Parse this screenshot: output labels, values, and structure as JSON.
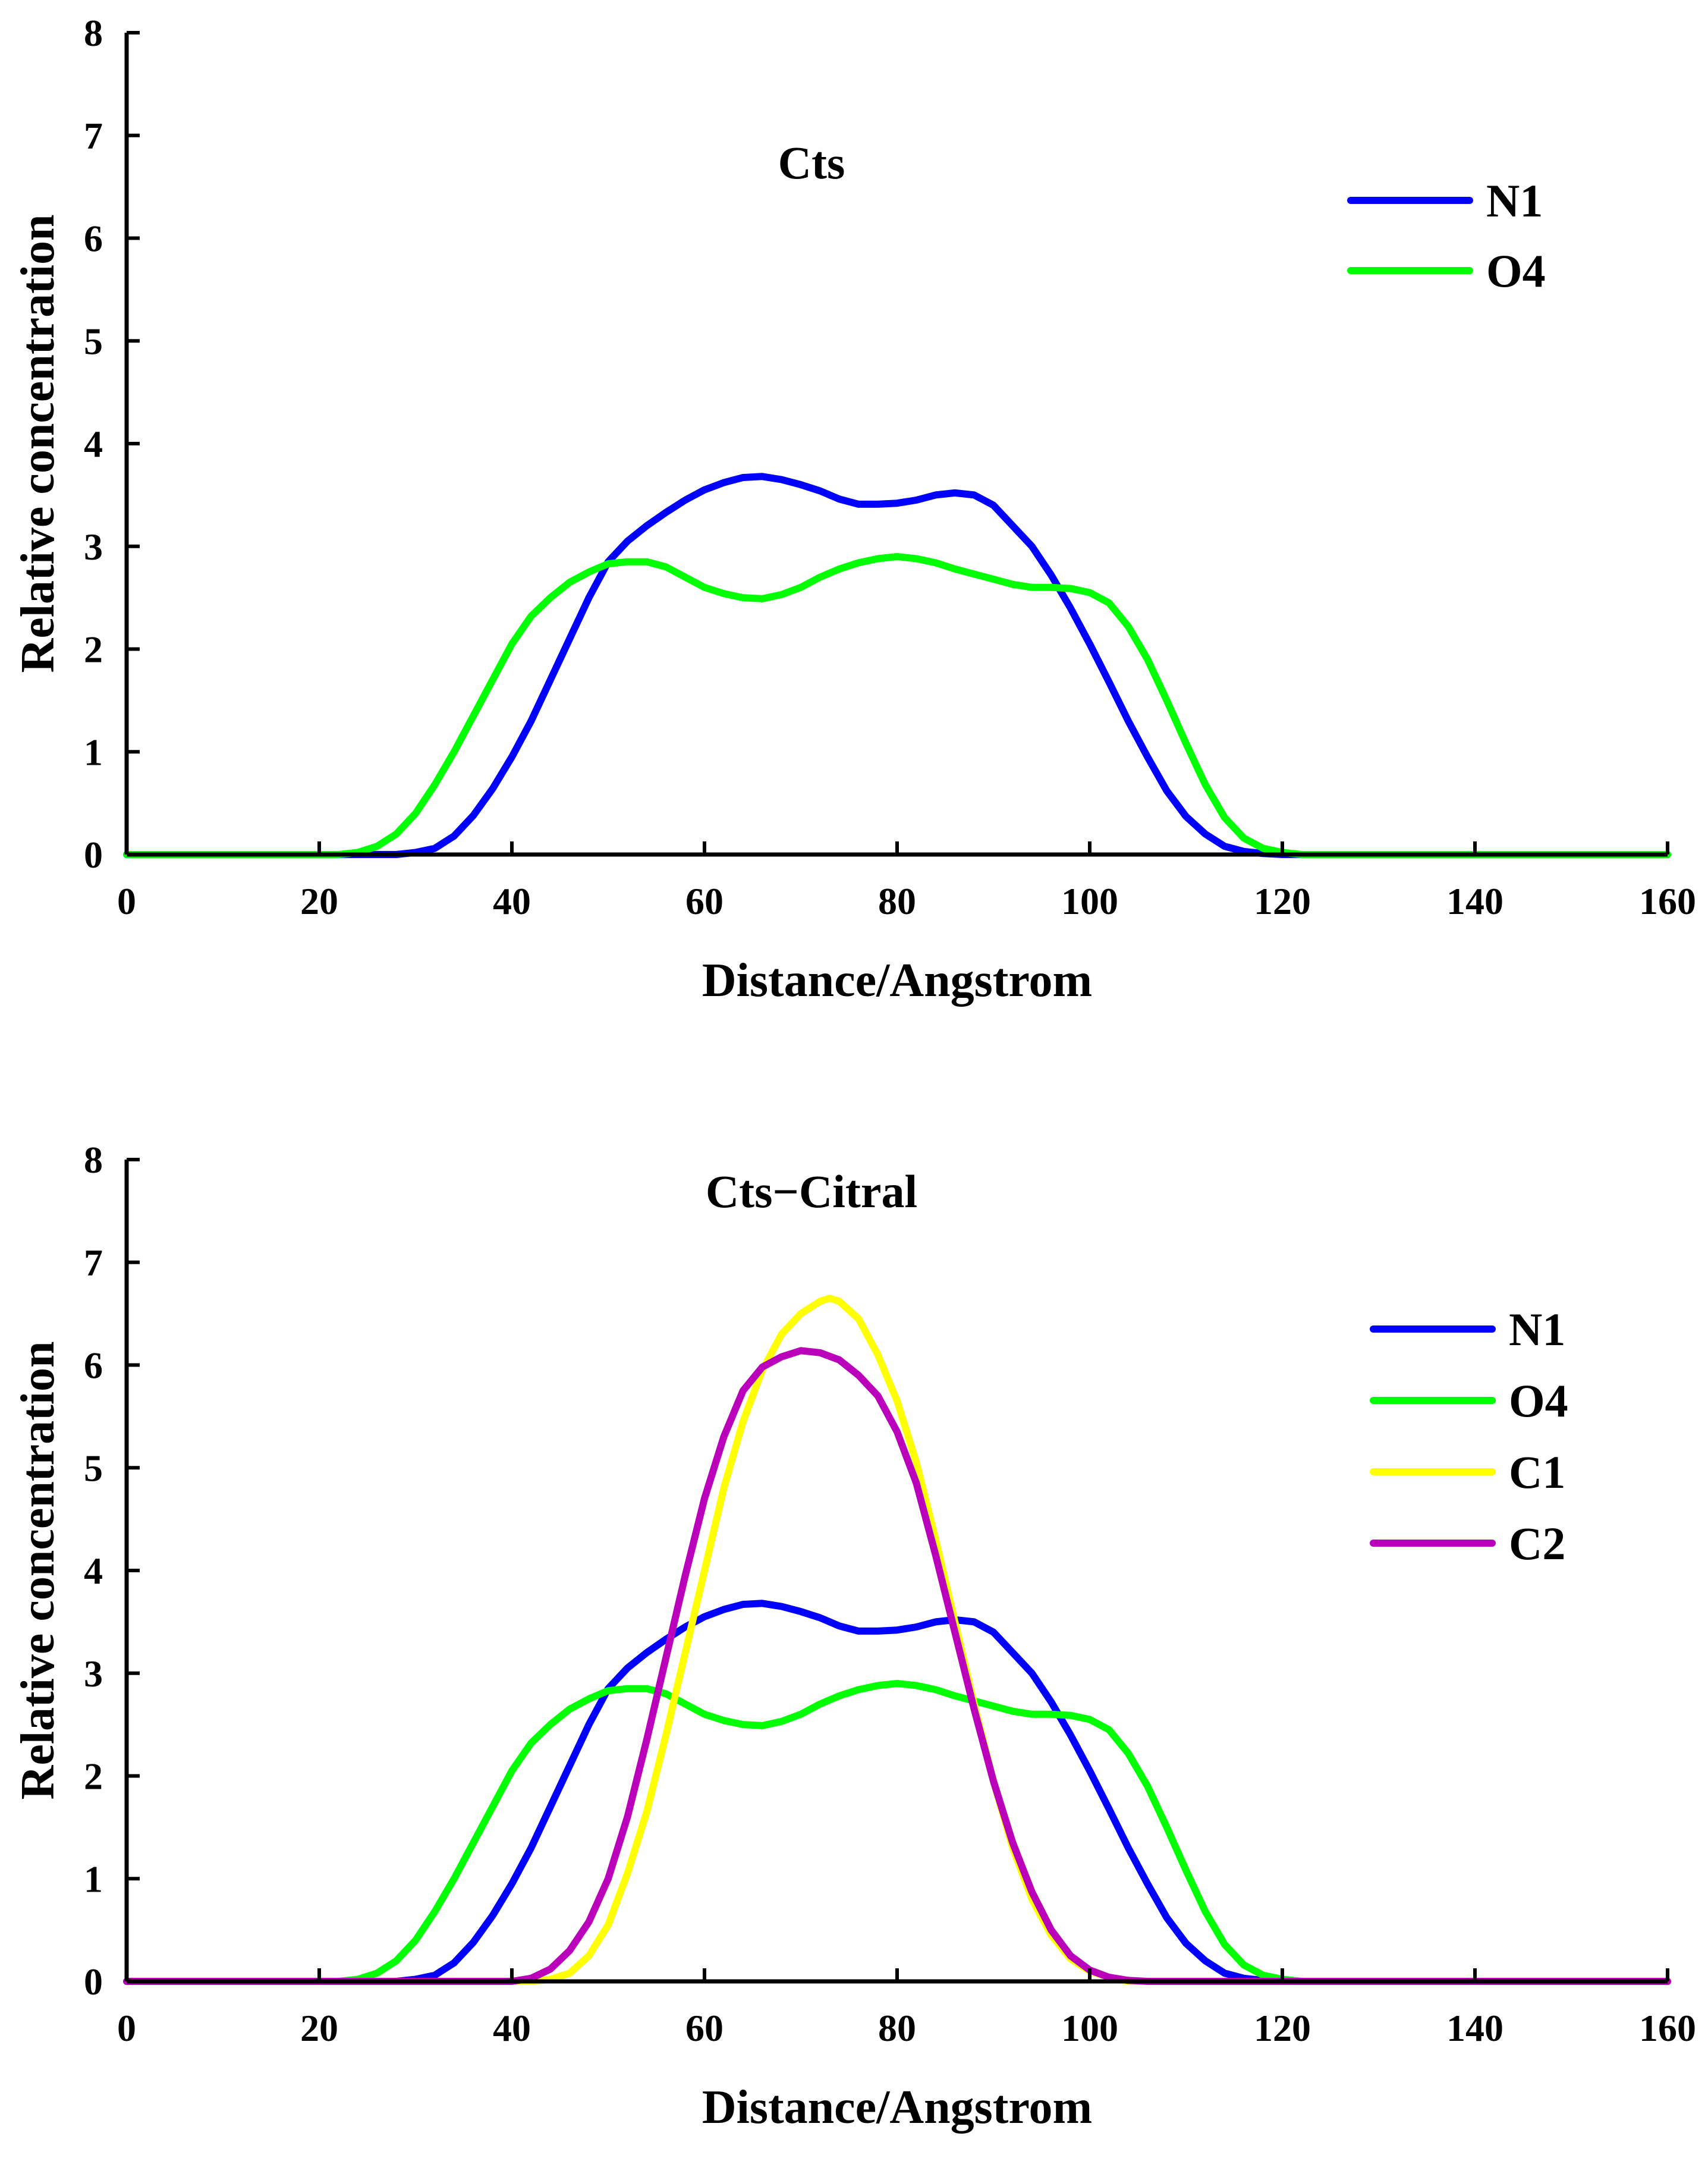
{
  "chart_data": [
    {
      "type": "line",
      "title": "Cts",
      "xlabel": "Distance/Angstrom",
      "ylabel": "Relative concentration",
      "xlim": [
        0,
        160
      ],
      "ylim": [
        0,
        8
      ],
      "xticks": [
        "0",
        "20",
        "40",
        "60",
        "80",
        "100",
        "120",
        "140",
        "160"
      ],
      "yticks": [
        "0",
        "1",
        "2",
        "3",
        "4",
        "5",
        "6",
        "7",
        "8"
      ],
      "legend_position": "top-right",
      "series": [
        {
          "name": "N1",
          "color": "#0000ff",
          "points": [
            [
              0,
              0
            ],
            [
              28,
              0
            ],
            [
              30,
              0.02
            ],
            [
              32,
              0.06
            ],
            [
              34,
              0.18
            ],
            [
              36,
              0.38
            ],
            [
              38,
              0.64
            ],
            [
              40,
              0.95
            ],
            [
              42,
              1.3
            ],
            [
              44,
              1.7
            ],
            [
              46,
              2.1
            ],
            [
              48,
              2.5
            ],
            [
              50,
              2.85
            ],
            [
              52,
              3.05
            ],
            [
              54,
              3.2
            ],
            [
              56,
              3.33
            ],
            [
              58,
              3.45
            ],
            [
              60,
              3.55
            ],
            [
              62,
              3.62
            ],
            [
              64,
              3.67
            ],
            [
              66,
              3.68
            ],
            [
              68,
              3.65
            ],
            [
              70,
              3.6
            ],
            [
              72,
              3.54
            ],
            [
              74,
              3.46
            ],
            [
              76,
              3.41
            ],
            [
              78,
              3.41
            ],
            [
              80,
              3.42
            ],
            [
              82,
              3.45
            ],
            [
              84,
              3.5
            ],
            [
              86,
              3.52
            ],
            [
              88,
              3.5
            ],
            [
              90,
              3.4
            ],
            [
              92,
              3.2
            ],
            [
              94,
              3.0
            ],
            [
              96,
              2.72
            ],
            [
              98,
              2.4
            ],
            [
              100,
              2.05
            ],
            [
              102,
              1.68
            ],
            [
              104,
              1.3
            ],
            [
              106,
              0.95
            ],
            [
              108,
              0.62
            ],
            [
              110,
              0.37
            ],
            [
              112,
              0.2
            ],
            [
              114,
              0.08
            ],
            [
              116,
              0.03
            ],
            [
              118,
              0.01
            ],
            [
              120,
              0
            ],
            [
              160,
              0
            ]
          ]
        },
        {
          "name": "O4",
          "color": "#00ff00",
          "points": [
            [
              0,
              0
            ],
            [
              22,
              0
            ],
            [
              24,
              0.02
            ],
            [
              26,
              0.08
            ],
            [
              28,
              0.2
            ],
            [
              30,
              0.4
            ],
            [
              32,
              0.68
            ],
            [
              34,
              1.0
            ],
            [
              36,
              1.35
            ],
            [
              38,
              1.7
            ],
            [
              40,
              2.05
            ],
            [
              42,
              2.32
            ],
            [
              44,
              2.5
            ],
            [
              46,
              2.65
            ],
            [
              48,
              2.75
            ],
            [
              50,
              2.83
            ],
            [
              52,
              2.85
            ],
            [
              54,
              2.85
            ],
            [
              56,
              2.8
            ],
            [
              58,
              2.7
            ],
            [
              60,
              2.6
            ],
            [
              62,
              2.54
            ],
            [
              64,
              2.5
            ],
            [
              66,
              2.49
            ],
            [
              68,
              2.53
            ],
            [
              70,
              2.6
            ],
            [
              72,
              2.7
            ],
            [
              74,
              2.78
            ],
            [
              76,
              2.84
            ],
            [
              78,
              2.88
            ],
            [
              80,
              2.9
            ],
            [
              82,
              2.88
            ],
            [
              84,
              2.84
            ],
            [
              86,
              2.78
            ],
            [
              88,
              2.73
            ],
            [
              90,
              2.68
            ],
            [
              92,
              2.63
            ],
            [
              94,
              2.6
            ],
            [
              96,
              2.6
            ],
            [
              98,
              2.59
            ],
            [
              100,
              2.55
            ],
            [
              102,
              2.45
            ],
            [
              104,
              2.22
            ],
            [
              106,
              1.9
            ],
            [
              108,
              1.5
            ],
            [
              110,
              1.08
            ],
            [
              112,
              0.68
            ],
            [
              114,
              0.36
            ],
            [
              116,
              0.16
            ],
            [
              118,
              0.06
            ],
            [
              120,
              0.02
            ],
            [
              122,
              0
            ],
            [
              160,
              0
            ]
          ]
        }
      ]
    },
    {
      "type": "line",
      "title": "Cts−Citral",
      "xlabel": "Distance/Angstrom",
      "ylabel": "Relative concentration",
      "xlim": [
        0,
        160
      ],
      "ylim": [
        0,
        8
      ],
      "xticks": [
        "0",
        "20",
        "40",
        "60",
        "80",
        "100",
        "120",
        "140",
        "160"
      ],
      "yticks": [
        "0",
        "1",
        "2",
        "3",
        "4",
        "5",
        "6",
        "7",
        "8"
      ],
      "legend_position": "top-right",
      "series": [
        {
          "name": "N1",
          "color": "#0000ff",
          "points": [
            [
              0,
              0
            ],
            [
              28,
              0
            ],
            [
              30,
              0.02
            ],
            [
              32,
              0.06
            ],
            [
              34,
              0.18
            ],
            [
              36,
              0.38
            ],
            [
              38,
              0.64
            ],
            [
              40,
              0.95
            ],
            [
              42,
              1.3
            ],
            [
              44,
              1.7
            ],
            [
              46,
              2.1
            ],
            [
              48,
              2.5
            ],
            [
              50,
              2.85
            ],
            [
              52,
              3.05
            ],
            [
              54,
              3.2
            ],
            [
              56,
              3.33
            ],
            [
              58,
              3.45
            ],
            [
              60,
              3.55
            ],
            [
              62,
              3.62
            ],
            [
              64,
              3.67
            ],
            [
              66,
              3.68
            ],
            [
              68,
              3.65
            ],
            [
              70,
              3.6
            ],
            [
              72,
              3.54
            ],
            [
              74,
              3.46
            ],
            [
              76,
              3.41
            ],
            [
              78,
              3.41
            ],
            [
              80,
              3.42
            ],
            [
              82,
              3.45
            ],
            [
              84,
              3.5
            ],
            [
              86,
              3.52
            ],
            [
              88,
              3.5
            ],
            [
              90,
              3.4
            ],
            [
              92,
              3.2
            ],
            [
              94,
              3.0
            ],
            [
              96,
              2.72
            ],
            [
              98,
              2.4
            ],
            [
              100,
              2.05
            ],
            [
              102,
              1.68
            ],
            [
              104,
              1.3
            ],
            [
              106,
              0.95
            ],
            [
              108,
              0.62
            ],
            [
              110,
              0.37
            ],
            [
              112,
              0.2
            ],
            [
              114,
              0.08
            ],
            [
              116,
              0.03
            ],
            [
              118,
              0.01
            ],
            [
              120,
              0
            ],
            [
              160,
              0
            ]
          ]
        },
        {
          "name": "O4",
          "color": "#00ff00",
          "points": [
            [
              0,
              0
            ],
            [
              22,
              0
            ],
            [
              24,
              0.02
            ],
            [
              26,
              0.08
            ],
            [
              28,
              0.2
            ],
            [
              30,
              0.4
            ],
            [
              32,
              0.68
            ],
            [
              34,
              1.0
            ],
            [
              36,
              1.35
            ],
            [
              38,
              1.7
            ],
            [
              40,
              2.05
            ],
            [
              42,
              2.32
            ],
            [
              44,
              2.5
            ],
            [
              46,
              2.65
            ],
            [
              48,
              2.75
            ],
            [
              50,
              2.83
            ],
            [
              52,
              2.85
            ],
            [
              54,
              2.85
            ],
            [
              56,
              2.8
            ],
            [
              58,
              2.7
            ],
            [
              60,
              2.6
            ],
            [
              62,
              2.54
            ],
            [
              64,
              2.5
            ],
            [
              66,
              2.49
            ],
            [
              68,
              2.53
            ],
            [
              70,
              2.6
            ],
            [
              72,
              2.7
            ],
            [
              74,
              2.78
            ],
            [
              76,
              2.84
            ],
            [
              78,
              2.88
            ],
            [
              80,
              2.9
            ],
            [
              82,
              2.88
            ],
            [
              84,
              2.84
            ],
            [
              86,
              2.78
            ],
            [
              88,
              2.73
            ],
            [
              90,
              2.68
            ],
            [
              92,
              2.63
            ],
            [
              94,
              2.6
            ],
            [
              96,
              2.6
            ],
            [
              98,
              2.59
            ],
            [
              100,
              2.55
            ],
            [
              102,
              2.45
            ],
            [
              104,
              2.22
            ],
            [
              106,
              1.9
            ],
            [
              108,
              1.5
            ],
            [
              110,
              1.08
            ],
            [
              112,
              0.68
            ],
            [
              114,
              0.36
            ],
            [
              116,
              0.16
            ],
            [
              118,
              0.06
            ],
            [
              120,
              0.02
            ],
            [
              122,
              0
            ],
            [
              160,
              0
            ]
          ]
        },
        {
          "name": "C1",
          "color": "#ffff00",
          "points": [
            [
              0,
              0
            ],
            [
              42,
              0
            ],
            [
              44,
              0.02
            ],
            [
              46,
              0.08
            ],
            [
              48,
              0.25
            ],
            [
              50,
              0.55
            ],
            [
              52,
              1.05
            ],
            [
              54,
              1.65
            ],
            [
              56,
              2.4
            ],
            [
              58,
              3.2
            ],
            [
              60,
              4.0
            ],
            [
              62,
              4.8
            ],
            [
              64,
              5.45
            ],
            [
              66,
              5.95
            ],
            [
              68,
              6.3
            ],
            [
              70,
              6.5
            ],
            [
              72,
              6.62
            ],
            [
              73,
              6.65
            ],
            [
              74,
              6.62
            ],
            [
              76,
              6.45
            ],
            [
              78,
              6.1
            ],
            [
              80,
              5.65
            ],
            [
              82,
              5.05
            ],
            [
              84,
              4.3
            ],
            [
              86,
              3.5
            ],
            [
              88,
              2.7
            ],
            [
              90,
              1.95
            ],
            [
              92,
              1.3
            ],
            [
              94,
              0.8
            ],
            [
              96,
              0.45
            ],
            [
              98,
              0.22
            ],
            [
              100,
              0.1
            ],
            [
              102,
              0.04
            ],
            [
              104,
              0
            ],
            [
              160,
              0
            ]
          ]
        },
        {
          "name": "C2",
          "color": "#bb00bb",
          "points": [
            [
              0,
              0
            ],
            [
              40,
              0
            ],
            [
              42,
              0.03
            ],
            [
              44,
              0.12
            ],
            [
              46,
              0.3
            ],
            [
              48,
              0.58
            ],
            [
              50,
              1.0
            ],
            [
              52,
              1.6
            ],
            [
              54,
              2.35
            ],
            [
              56,
              3.15
            ],
            [
              58,
              3.95
            ],
            [
              60,
              4.7
            ],
            [
              62,
              5.3
            ],
            [
              64,
              5.75
            ],
            [
              66,
              5.98
            ],
            [
              68,
              6.08
            ],
            [
              70,
              6.14
            ],
            [
              72,
              6.12
            ],
            [
              74,
              6.05
            ],
            [
              76,
              5.9
            ],
            [
              78,
              5.7
            ],
            [
              80,
              5.35
            ],
            [
              82,
              4.85
            ],
            [
              84,
              4.15
            ],
            [
              86,
              3.4
            ],
            [
              88,
              2.65
            ],
            [
              90,
              1.95
            ],
            [
              92,
              1.35
            ],
            [
              94,
              0.87
            ],
            [
              96,
              0.5
            ],
            [
              98,
              0.25
            ],
            [
              100,
              0.11
            ],
            [
              102,
              0.04
            ],
            [
              104,
              0.01
            ],
            [
              106,
              0
            ],
            [
              160,
              0
            ]
          ]
        }
      ]
    }
  ]
}
